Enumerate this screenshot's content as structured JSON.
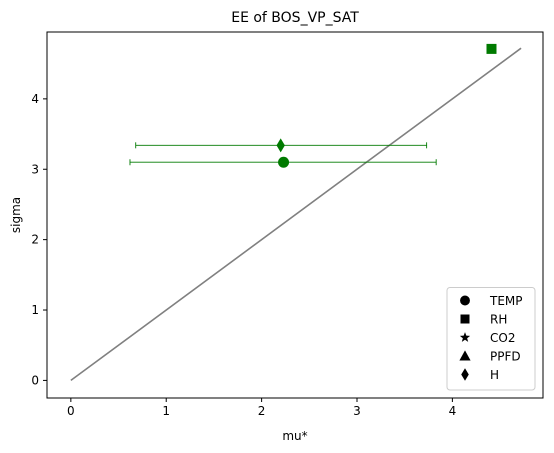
{
  "chart_data": {
    "type": "scatter",
    "title": "EE of BOS_VP_SAT",
    "xlabel": "mu*",
    "ylabel": "sigma",
    "xlim": [
      -0.25,
      4.95
    ],
    "ylim": [
      -0.25,
      4.95
    ],
    "xticks": [
      0,
      1,
      2,
      3,
      4
    ],
    "yticks": [
      0,
      1,
      2,
      3,
      4
    ],
    "grid": false,
    "legend_position": "lower right",
    "marker_color": "#007a00",
    "reference_line": {
      "color": "#808080",
      "points": [
        [
          0,
          0
        ],
        [
          4.72,
          4.72
        ]
      ]
    },
    "series": [
      {
        "name": "TEMP",
        "marker": "circle",
        "x": 2.23,
        "y": 3.1,
        "xerr_low": 0.62,
        "xerr_high": 3.83
      },
      {
        "name": "RH",
        "marker": "square",
        "x": 4.41,
        "y": 4.71
      },
      {
        "name": "CO2",
        "marker": "star"
      },
      {
        "name": "PPFD",
        "marker": "triangle"
      },
      {
        "name": "H",
        "marker": "diamond",
        "x": 2.2,
        "y": 3.34,
        "xerr_low": 0.68,
        "xerr_high": 3.73
      }
    ]
  }
}
